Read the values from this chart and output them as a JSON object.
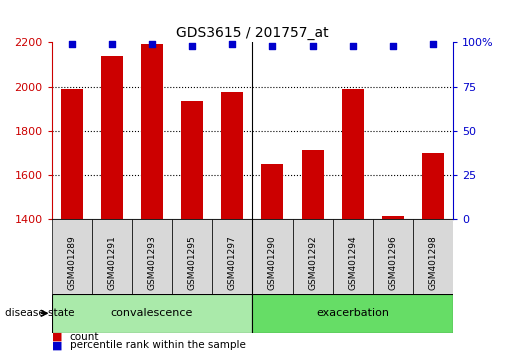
{
  "title": "GDS3615 / 201757_at",
  "samples": [
    "GSM401289",
    "GSM401291",
    "GSM401293",
    "GSM401295",
    "GSM401297",
    "GSM401290",
    "GSM401292",
    "GSM401294",
    "GSM401296",
    "GSM401298"
  ],
  "counts": [
    1990,
    2140,
    2195,
    1935,
    1975,
    1650,
    1715,
    1990,
    1415,
    1700
  ],
  "percentiles": [
    99,
    99,
    99,
    98,
    99,
    98,
    98,
    98,
    98,
    99
  ],
  "bar_color": "#cc0000",
  "dot_color": "#0000cc",
  "ylim_left": [
    1400,
    2200
  ],
  "ylim_right": [
    0,
    100
  ],
  "yticks_left": [
    1400,
    1600,
    1800,
    2000,
    2200
  ],
  "yticks_right": [
    0,
    25,
    50,
    75,
    100
  ],
  "yticklabels_right": [
    "0",
    "25",
    "50",
    "75",
    "100%"
  ],
  "grid_values": [
    1600,
    1800,
    2000
  ],
  "n_convalescence": 5,
  "n_exacerbation": 5,
  "convalescence_label": "convalescence",
  "exacerbation_label": "exacerbation",
  "convalescence_color": "#aaeaaa",
  "exacerbation_color": "#66dd66",
  "group_bar_color": "#d8d8d8",
  "disease_state_label": "disease state",
  "legend_count_label": "count",
  "legend_percentile_label": "percentile rank within the sample",
  "bar_width": 0.55,
  "background_color": "#ffffff",
  "title_fontsize": 10,
  "tick_fontsize": 8,
  "label_fontsize": 8
}
